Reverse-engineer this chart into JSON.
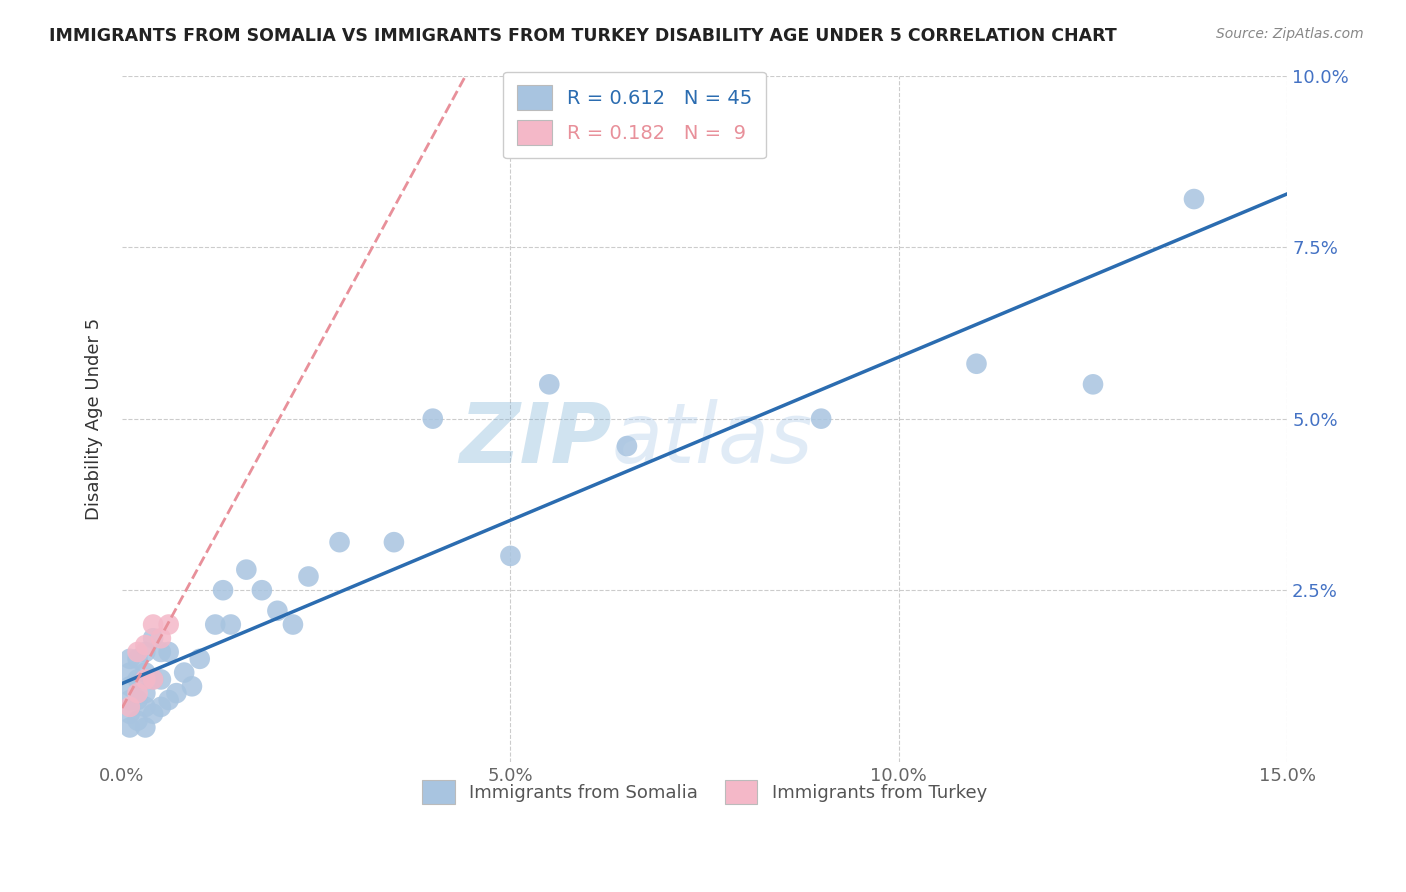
{
  "title": "IMMIGRANTS FROM SOMALIA VS IMMIGRANTS FROM TURKEY DISABILITY AGE UNDER 5 CORRELATION CHART",
  "source": "Source: ZipAtlas.com",
  "ylabel": "Disability Age Under 5",
  "xlabel": "",
  "xlim": [
    0,
    0.15
  ],
  "ylim": [
    0,
    0.1
  ],
  "xticks": [
    0.0,
    0.05,
    0.1,
    0.15
  ],
  "yticks": [
    0.0,
    0.025,
    0.05,
    0.075,
    0.1
  ],
  "xtick_labels": [
    "0.0%",
    "5.0%",
    "10.0%",
    "15.0%"
  ],
  "ytick_labels_right": [
    "",
    "2.5%",
    "5.0%",
    "7.5%",
    "10.0%"
  ],
  "somalia_color": "#a8c4e0",
  "turkey_color": "#f4b8c8",
  "somalia_line_color": "#2b6cb0",
  "turkey_line_color": "#e8909a",
  "somalia_R": 0.612,
  "somalia_N": 45,
  "turkey_R": 0.182,
  "turkey_N": 9,
  "watermark_zip": "ZIP",
  "watermark_atlas": "atlas",
  "background_color": "#ffffff",
  "grid_color": "#cccccc",
  "somalia_x": [
    0.001,
    0.001,
    0.001,
    0.001,
    0.001,
    0.001,
    0.002,
    0.002,
    0.002,
    0.002,
    0.003,
    0.003,
    0.003,
    0.003,
    0.003,
    0.004,
    0.004,
    0.004,
    0.005,
    0.005,
    0.005,
    0.006,
    0.006,
    0.007,
    0.008,
    0.009,
    0.01,
    0.012,
    0.013,
    0.014,
    0.016,
    0.018,
    0.02,
    0.022,
    0.024,
    0.028,
    0.035,
    0.04,
    0.05,
    0.055,
    0.065,
    0.09,
    0.11,
    0.125,
    0.138
  ],
  "somalia_y": [
    0.005,
    0.007,
    0.009,
    0.011,
    0.013,
    0.015,
    0.006,
    0.009,
    0.012,
    0.015,
    0.005,
    0.008,
    0.01,
    0.013,
    0.016,
    0.007,
    0.012,
    0.018,
    0.008,
    0.012,
    0.016,
    0.009,
    0.016,
    0.01,
    0.013,
    0.011,
    0.015,
    0.02,
    0.025,
    0.02,
    0.028,
    0.025,
    0.022,
    0.02,
    0.027,
    0.032,
    0.032,
    0.05,
    0.03,
    0.055,
    0.046,
    0.05,
    0.058,
    0.055,
    0.082
  ],
  "turkey_x": [
    0.001,
    0.002,
    0.002,
    0.003,
    0.003,
    0.004,
    0.004,
    0.005,
    0.006
  ],
  "turkey_y": [
    0.008,
    0.01,
    0.016,
    0.012,
    0.017,
    0.012,
    0.02,
    0.018,
    0.02
  ]
}
